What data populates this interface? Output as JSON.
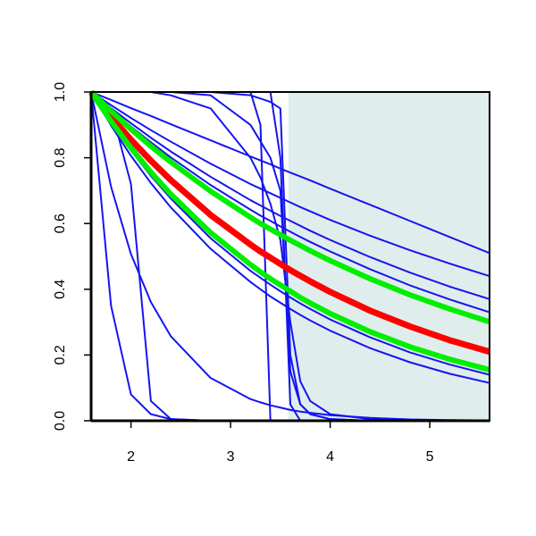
{
  "chart_data": {
    "type": "line",
    "x": [
      1.6,
      1.8,
      2.0,
      2.2,
      2.4,
      2.8,
      3.2,
      3.3,
      3.4,
      3.5,
      3.6,
      3.7,
      3.8,
      4.0,
      4.4,
      4.8,
      5.2,
      5.6
    ],
    "xlim": [
      1.6,
      5.6
    ],
    "xticks": [
      2,
      3,
      4,
      5
    ],
    "ylim": [
      0,
      1
    ],
    "yticks": [
      {
        "value": 0,
        "label": "0.0"
      },
      0.2,
      0.4,
      0.6,
      0.8,
      {
        "value": 1,
        "label": "1.0"
      }
    ],
    "shaded_region": {
      "x": [
        3.58,
        5.6
      ],
      "color": "#e0eded"
    },
    "series": [
      {
        "color": "#1515f0",
        "width": 2,
        "values": [
          1,
          0.976,
          0.951,
          0.927,
          0.902,
          0.853,
          0.804,
          0.792,
          0.78,
          0.767,
          0.755,
          0.743,
          0.731,
          0.706,
          0.657,
          0.608,
          0.559,
          0.51
        ]
      },
      {
        "color": "#1515f0",
        "width": 2,
        "values": [
          1,
          0.96,
          0.921,
          0.884,
          0.849,
          0.782,
          0.72,
          0.706,
          0.692,
          0.678,
          0.664,
          0.65,
          0.637,
          0.611,
          0.563,
          0.519,
          0.478,
          0.44
        ]
      },
      {
        "color": "#1515f0",
        "width": 2,
        "values": [
          1,
          0.951,
          0.905,
          0.861,
          0.819,
          0.742,
          0.671,
          0.655,
          0.639,
          0.623,
          0.608,
          0.593,
          0.578,
          0.55,
          0.498,
          0.451,
          0.408,
          0.37
        ]
      },
      {
        "color": "#1515f0",
        "width": 2,
        "values": [
          1,
          0.946,
          0.895,
          0.847,
          0.801,
          0.717,
          0.642,
          0.624,
          0.608,
          0.591,
          0.575,
          0.559,
          0.544,
          0.515,
          0.461,
          0.412,
          0.369,
          0.33
        ]
      },
      {
        "color": "#1515f0",
        "width": 2,
        "values": [
          1,
          0.907,
          0.822,
          0.745,
          0.676,
          0.555,
          0.456,
          0.435,
          0.414,
          0.394,
          0.375,
          0.357,
          0.34,
          0.308,
          0.254,
          0.208,
          0.171,
          0.14
        ]
      },
      {
        "color": "#1515f0",
        "width": 2,
        "values": [
          1,
          0.898,
          0.806,
          0.723,
          0.649,
          0.523,
          0.422,
          0.4,
          0.378,
          0.359,
          0.34,
          0.322,
          0.305,
          0.274,
          0.221,
          0.178,
          0.143,
          0.115
        ]
      },
      {
        "color": "#1515f0",
        "width": 2,
        "values": [
          1,
          0.95,
          0.72,
          0.06,
          0.005,
          0,
          0,
          0,
          0,
          0,
          0,
          0,
          0,
          0,
          0,
          0,
          0,
          0
        ]
      },
      {
        "color": "#1515f0",
        "width": 2,
        "values": [
          1,
          0.35,
          0.08,
          0.02,
          0.005,
          0,
          0,
          0,
          0,
          0,
          0,
          0,
          0,
          0,
          0,
          0,
          0,
          0
        ]
      },
      {
        "color": "#1515f0",
        "width": 2,
        "values": [
          1,
          0.712,
          0.507,
          0.361,
          0.257,
          0.13,
          0.066,
          0.056,
          0.047,
          0.04,
          0.033,
          0.028,
          0.024,
          0.017,
          0.009,
          0.004,
          0.002,
          0.001
        ]
      },
      {
        "color": "#1515f0",
        "width": 2,
        "values": [
          1,
          1,
          1,
          1,
          1,
          1,
          1,
          0.9,
          0,
          0,
          0,
          0,
          0,
          0,
          0,
          0,
          0,
          0
        ]
      },
      {
        "color": "#1515f0",
        "width": 2,
        "values": [
          1,
          1,
          1,
          1,
          1,
          1,
          1,
          1,
          1,
          0.8,
          0.05,
          0,
          0,
          0,
          0,
          0,
          0,
          0
        ]
      },
      {
        "color": "#1515f0",
        "width": 2,
        "values": [
          1,
          1,
          1,
          1,
          0.99,
          0.95,
          0.8,
          0.74,
          0.66,
          0.55,
          0.3,
          0.12,
          0.06,
          0.02,
          0.005,
          0,
          0,
          0
        ]
      },
      {
        "color": "#1515f0",
        "width": 2,
        "values": [
          1,
          1,
          1,
          1,
          1,
          0.99,
          0.9,
          0.85,
          0.8,
          0.7,
          0.15,
          0.05,
          0.02,
          0.005,
          0,
          0,
          0,
          0
        ]
      },
      {
        "color": "#1515f0",
        "width": 2,
        "values": [
          1,
          1,
          1,
          1,
          1,
          1,
          0.99,
          0.98,
          0.97,
          0.95,
          0.2,
          0.05,
          0.02,
          0.005,
          0,
          0,
          0,
          0
        ]
      },
      {
        "color": "#ff0000",
        "width": 7,
        "values": [
          1,
          0.925,
          0.855,
          0.791,
          0.732,
          0.626,
          0.536,
          0.515,
          0.496,
          0.477,
          0.458,
          0.441,
          0.424,
          0.392,
          0.335,
          0.287,
          0.245,
          0.21
        ]
      },
      {
        "color": "#00ee00",
        "width": 6,
        "values": [
          1,
          0.942,
          0.887,
          0.835,
          0.787,
          0.698,
          0.619,
          0.6,
          0.583,
          0.566,
          0.549,
          0.533,
          0.517,
          0.487,
          0.432,
          0.383,
          0.34,
          0.301
        ]
      },
      {
        "color": "#00ee00",
        "width": 6,
        "values": [
          1,
          0.911,
          0.83,
          0.756,
          0.689,
          0.572,
          0.475,
          0.453,
          0.432,
          0.413,
          0.394,
          0.375,
          0.358,
          0.326,
          0.271,
          0.225,
          0.187,
          0.155
        ]
      }
    ]
  }
}
